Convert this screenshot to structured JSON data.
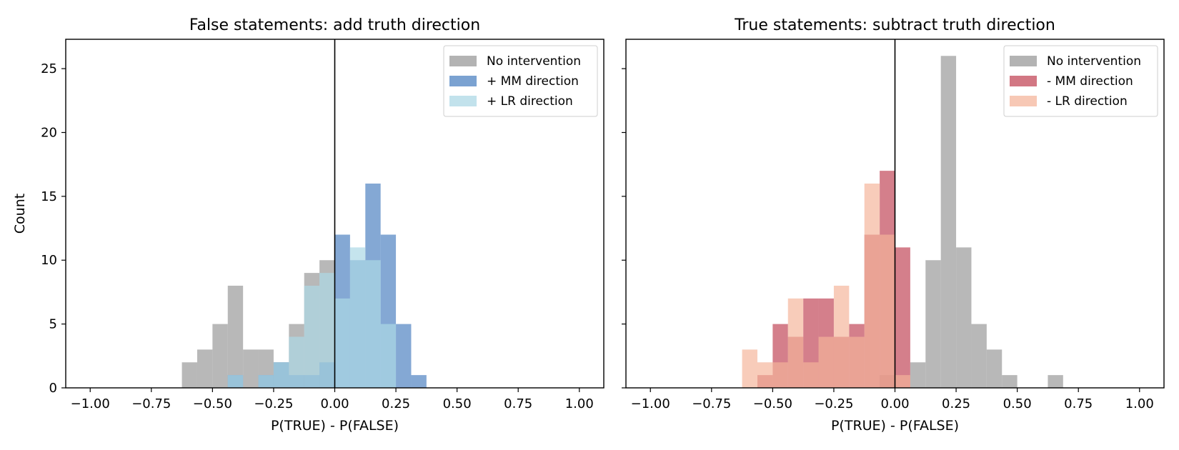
{
  "chart_data": [
    {
      "type": "histogram",
      "title": "False statements: add truth direction",
      "xlabel": "P(TRUE) - P(FALSE)",
      "ylabel": "Count",
      "xlim": [
        -1.1,
        1.1
      ],
      "ylim": [
        0,
        27.3
      ],
      "xticks": [
        -1.0,
        -0.75,
        -0.5,
        -0.25,
        0.0,
        0.25,
        0.5,
        0.75,
        1.0
      ],
      "xtick_labels": [
        "−1.00",
        "−0.75",
        "−0.50",
        "−0.25",
        "0.00",
        "0.25",
        "0.50",
        "0.75",
        "1.00"
      ],
      "yticks": [
        0,
        5,
        10,
        15,
        20,
        25
      ],
      "ytick_labels": [
        "0",
        "5",
        "10",
        "15",
        "20",
        "25"
      ],
      "vline_x": 0,
      "legend_position": "top-right",
      "bin_width": 0.0625,
      "series": [
        {
          "name": "No intervention",
          "color": "#a0a0a0",
          "opacity": 0.75,
          "bins": [
            [
              -0.625,
              2
            ],
            [
              -0.5625,
              3
            ],
            [
              -0.5,
              5
            ],
            [
              -0.4375,
              8
            ],
            [
              -0.375,
              3
            ],
            [
              -0.3125,
              3
            ],
            [
              -0.25,
              2
            ],
            [
              -0.1875,
              5
            ],
            [
              -0.125,
              9
            ],
            [
              -0.0625,
              10
            ]
          ]
        },
        {
          "name": "+ MM direction",
          "color": "#4a7fc0",
          "opacity": 0.68,
          "bins": [
            [
              -0.4375,
              1
            ],
            [
              -0.3125,
              1
            ],
            [
              -0.25,
              2
            ],
            [
              -0.1875,
              1
            ],
            [
              -0.125,
              1
            ],
            [
              -0.0625,
              2
            ],
            [
              0.0,
              12
            ],
            [
              0.0625,
              10
            ],
            [
              0.125,
              16
            ],
            [
              0.1875,
              12
            ],
            [
              0.25,
              5
            ],
            [
              0.3125,
              1
            ]
          ]
        },
        {
          "name": "+ LR direction",
          "color": "#add8e6",
          "opacity": 0.7,
          "bins": [
            [
              -0.4375,
              1
            ],
            [
              -0.3125,
              1
            ],
            [
              -0.25,
              2
            ],
            [
              -0.1875,
              4
            ],
            [
              -0.125,
              8
            ],
            [
              -0.0625,
              9
            ],
            [
              0.0,
              7
            ],
            [
              0.0625,
              11
            ],
            [
              0.125,
              10
            ],
            [
              0.1875,
              5
            ]
          ]
        }
      ]
    },
    {
      "type": "histogram",
      "title": "True statements: subtract truth direction",
      "xlabel": "P(TRUE) - P(FALSE)",
      "ylabel": "",
      "xlim": [
        -1.1,
        1.1
      ],
      "ylim": [
        0,
        27.3
      ],
      "xticks": [
        -1.0,
        -0.75,
        -0.5,
        -0.25,
        0.0,
        0.25,
        0.5,
        0.75,
        1.0
      ],
      "xtick_labels": [
        "−1.00",
        "−0.75",
        "−0.50",
        "−0.25",
        "0.00",
        "0.25",
        "0.50",
        "0.75",
        "1.00"
      ],
      "yticks": [
        0,
        5,
        10,
        15,
        20,
        25
      ],
      "ytick_labels": [],
      "vline_x": 0,
      "legend_position": "top-right",
      "bin_width": 0.0625,
      "series": [
        {
          "name": "No intervention",
          "color": "#a0a0a0",
          "opacity": 0.75,
          "bins": [
            [
              -0.0625,
              1
            ],
            [
              0.0625,
              2
            ],
            [
              0.125,
              10
            ],
            [
              0.1875,
              26
            ],
            [
              0.25,
              11
            ],
            [
              0.3125,
              5
            ],
            [
              0.375,
              3
            ],
            [
              0.4375,
              1
            ],
            [
              0.625,
              1
            ]
          ]
        },
        {
          "name": "- MM direction",
          "color": "#c44e5e",
          "opacity": 0.72,
          "bins": [
            [
              -0.5625,
              1
            ],
            [
              -0.5,
              5
            ],
            [
              -0.4375,
              4
            ],
            [
              -0.375,
              7
            ],
            [
              -0.3125,
              7
            ],
            [
              -0.25,
              4
            ],
            [
              -0.1875,
              5
            ],
            [
              -0.125,
              12
            ],
            [
              -0.0625,
              17
            ],
            [
              0.0,
              11
            ]
          ]
        },
        {
          "name": "- LR direction",
          "color": "#f4b49a",
          "opacity": 0.68,
          "bins": [
            [
              -0.625,
              3
            ],
            [
              -0.5625,
              2
            ],
            [
              -0.5,
              2
            ],
            [
              -0.4375,
              7
            ],
            [
              -0.375,
              2
            ],
            [
              -0.3125,
              4
            ],
            [
              -0.25,
              8
            ],
            [
              -0.1875,
              4
            ],
            [
              -0.125,
              16
            ],
            [
              -0.0625,
              12
            ],
            [
              0.0,
              1
            ]
          ]
        }
      ]
    }
  ]
}
